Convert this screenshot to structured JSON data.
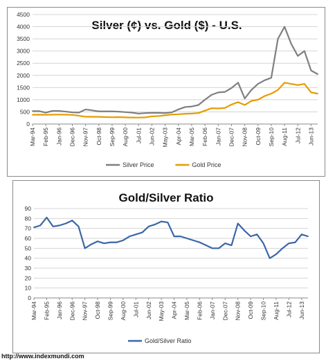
{
  "source_url": "http://www.indexmundi.com",
  "chart_data": [
    {
      "type": "line",
      "title": "Silver (¢) vs. Gold ($) - U.S.",
      "xlabel": "",
      "ylabel": "",
      "ylim": [
        0,
        4500
      ],
      "yticks": [
        0,
        500,
        1000,
        1500,
        2000,
        2500,
        3000,
        3500,
        4000,
        4500
      ],
      "grid": true,
      "legend_position": "bottom",
      "x_tick_labels": [
        "Mar-94",
        "Feb-95",
        "Jan-96",
        "Dec-96",
        "Nov-97",
        "Oct-98",
        "Sep-99",
        "Aug-00",
        "Jul-01",
        "Jun-02",
        "May-03",
        "Apr-04",
        "Mar-05",
        "Feb-06",
        "Jan-07",
        "Dec-07",
        "Nov-08",
        "Oct-09",
        "Sep-10",
        "Aug-11",
        "Jul-12",
        "Jun-13"
      ],
      "x": [
        "Mar-94",
        "Sep-94",
        "Feb-95",
        "Aug-95",
        "Jan-96",
        "Jul-96",
        "Dec-96",
        "Jun-97",
        "Nov-97",
        "May-98",
        "Oct-98",
        "Apr-99",
        "Sep-99",
        "Mar-00",
        "Aug-00",
        "Feb-01",
        "Jul-01",
        "Jan-02",
        "Jun-02",
        "Dec-02",
        "May-03",
        "Nov-03",
        "Apr-04",
        "Oct-04",
        "Mar-05",
        "Sep-05",
        "Feb-06",
        "Aug-06",
        "Jan-07",
        "Jul-07",
        "Dec-07",
        "Jun-08",
        "Nov-08",
        "May-09",
        "Oct-09",
        "Apr-10",
        "Sep-10",
        "Mar-11",
        "Aug-11",
        "Feb-12",
        "Jul-12",
        "Jan-13",
        "Jun-13",
        "Dec-13"
      ],
      "series": [
        {
          "name": "Silver Price",
          "color": "#7f7f7f",
          "values": [
            530,
            530,
            470,
            540,
            540,
            510,
            480,
            470,
            600,
            560,
            520,
            520,
            520,
            510,
            490,
            470,
            430,
            450,
            460,
            460,
            450,
            480,
            600,
            700,
            720,
            780,
            1000,
            1200,
            1300,
            1320,
            1480,
            1700,
            1050,
            1400,
            1650,
            1800,
            1900,
            3500,
            4000,
            3300,
            2800,
            3000,
            2200,
            2050
          ]
        },
        {
          "name": "Gold Price",
          "color": "#e59c00",
          "values": [
            380,
            385,
            380,
            385,
            390,
            385,
            375,
            340,
            300,
            300,
            295,
            285,
            280,
            285,
            275,
            268,
            265,
            275,
            315,
            330,
            360,
            390,
            400,
            420,
            430,
            450,
            550,
            650,
            640,
            660,
            800,
            900,
            780,
            950,
            1000,
            1150,
            1250,
            1400,
            1700,
            1650,
            1600,
            1650,
            1300,
            1250
          ]
        }
      ]
    },
    {
      "type": "line",
      "title": "Gold/Silver Ratio",
      "xlabel": "",
      "ylabel": "",
      "ylim": [
        0,
        90
      ],
      "yticks": [
        0,
        10,
        20,
        30,
        40,
        50,
        60,
        70,
        80,
        90
      ],
      "grid": true,
      "legend_position": "bottom",
      "x_tick_labels": [
        "Mar-94",
        "Feb-95",
        "Jan-96",
        "Dec-96",
        "Nov-97",
        "Oct-98",
        "Sep-99",
        "Aug-00",
        "Jul-01",
        "Jun-02",
        "May-03",
        "Apr-04",
        "Mar-05",
        "Feb-06",
        "Jan-07",
        "Dec-07",
        "Nov-08",
        "Oct-09",
        "Sep-10",
        "Aug-11",
        "Jul-12",
        "Jun-13"
      ],
      "x": [
        "Mar-94",
        "Sep-94",
        "Feb-95",
        "Aug-95",
        "Jan-96",
        "Jul-96",
        "Dec-96",
        "Jun-97",
        "Nov-97",
        "May-98",
        "Oct-98",
        "Apr-99",
        "Sep-99",
        "Mar-00",
        "Aug-00",
        "Feb-01",
        "Jul-01",
        "Jan-02",
        "Jun-02",
        "Dec-02",
        "May-03",
        "Nov-03",
        "Apr-04",
        "Oct-04",
        "Mar-05",
        "Sep-05",
        "Feb-06",
        "Aug-06",
        "Jan-07",
        "Jul-07",
        "Dec-07",
        "Jun-08",
        "Nov-08",
        "May-09",
        "Oct-09",
        "Apr-10",
        "Sep-10",
        "Mar-11",
        "Aug-11",
        "Feb-12",
        "Jul-12",
        "Jan-13",
        "Jun-13",
        "Dec-13"
      ],
      "series": [
        {
          "name": "Gold/Silver Ratio",
          "color": "#3a66a7",
          "values": [
            71,
            73,
            81,
            72,
            73,
            75,
            78,
            72,
            50,
            54,
            57,
            55,
            56,
            56,
            58,
            62,
            64,
            66,
            72,
            74,
            77,
            76,
            62,
            62,
            60,
            58,
            56,
            53,
            50,
            50,
            55,
            53,
            75,
            68,
            62,
            64,
            55,
            40,
            44,
            50,
            55,
            56,
            64,
            62
          ]
        }
      ]
    }
  ]
}
